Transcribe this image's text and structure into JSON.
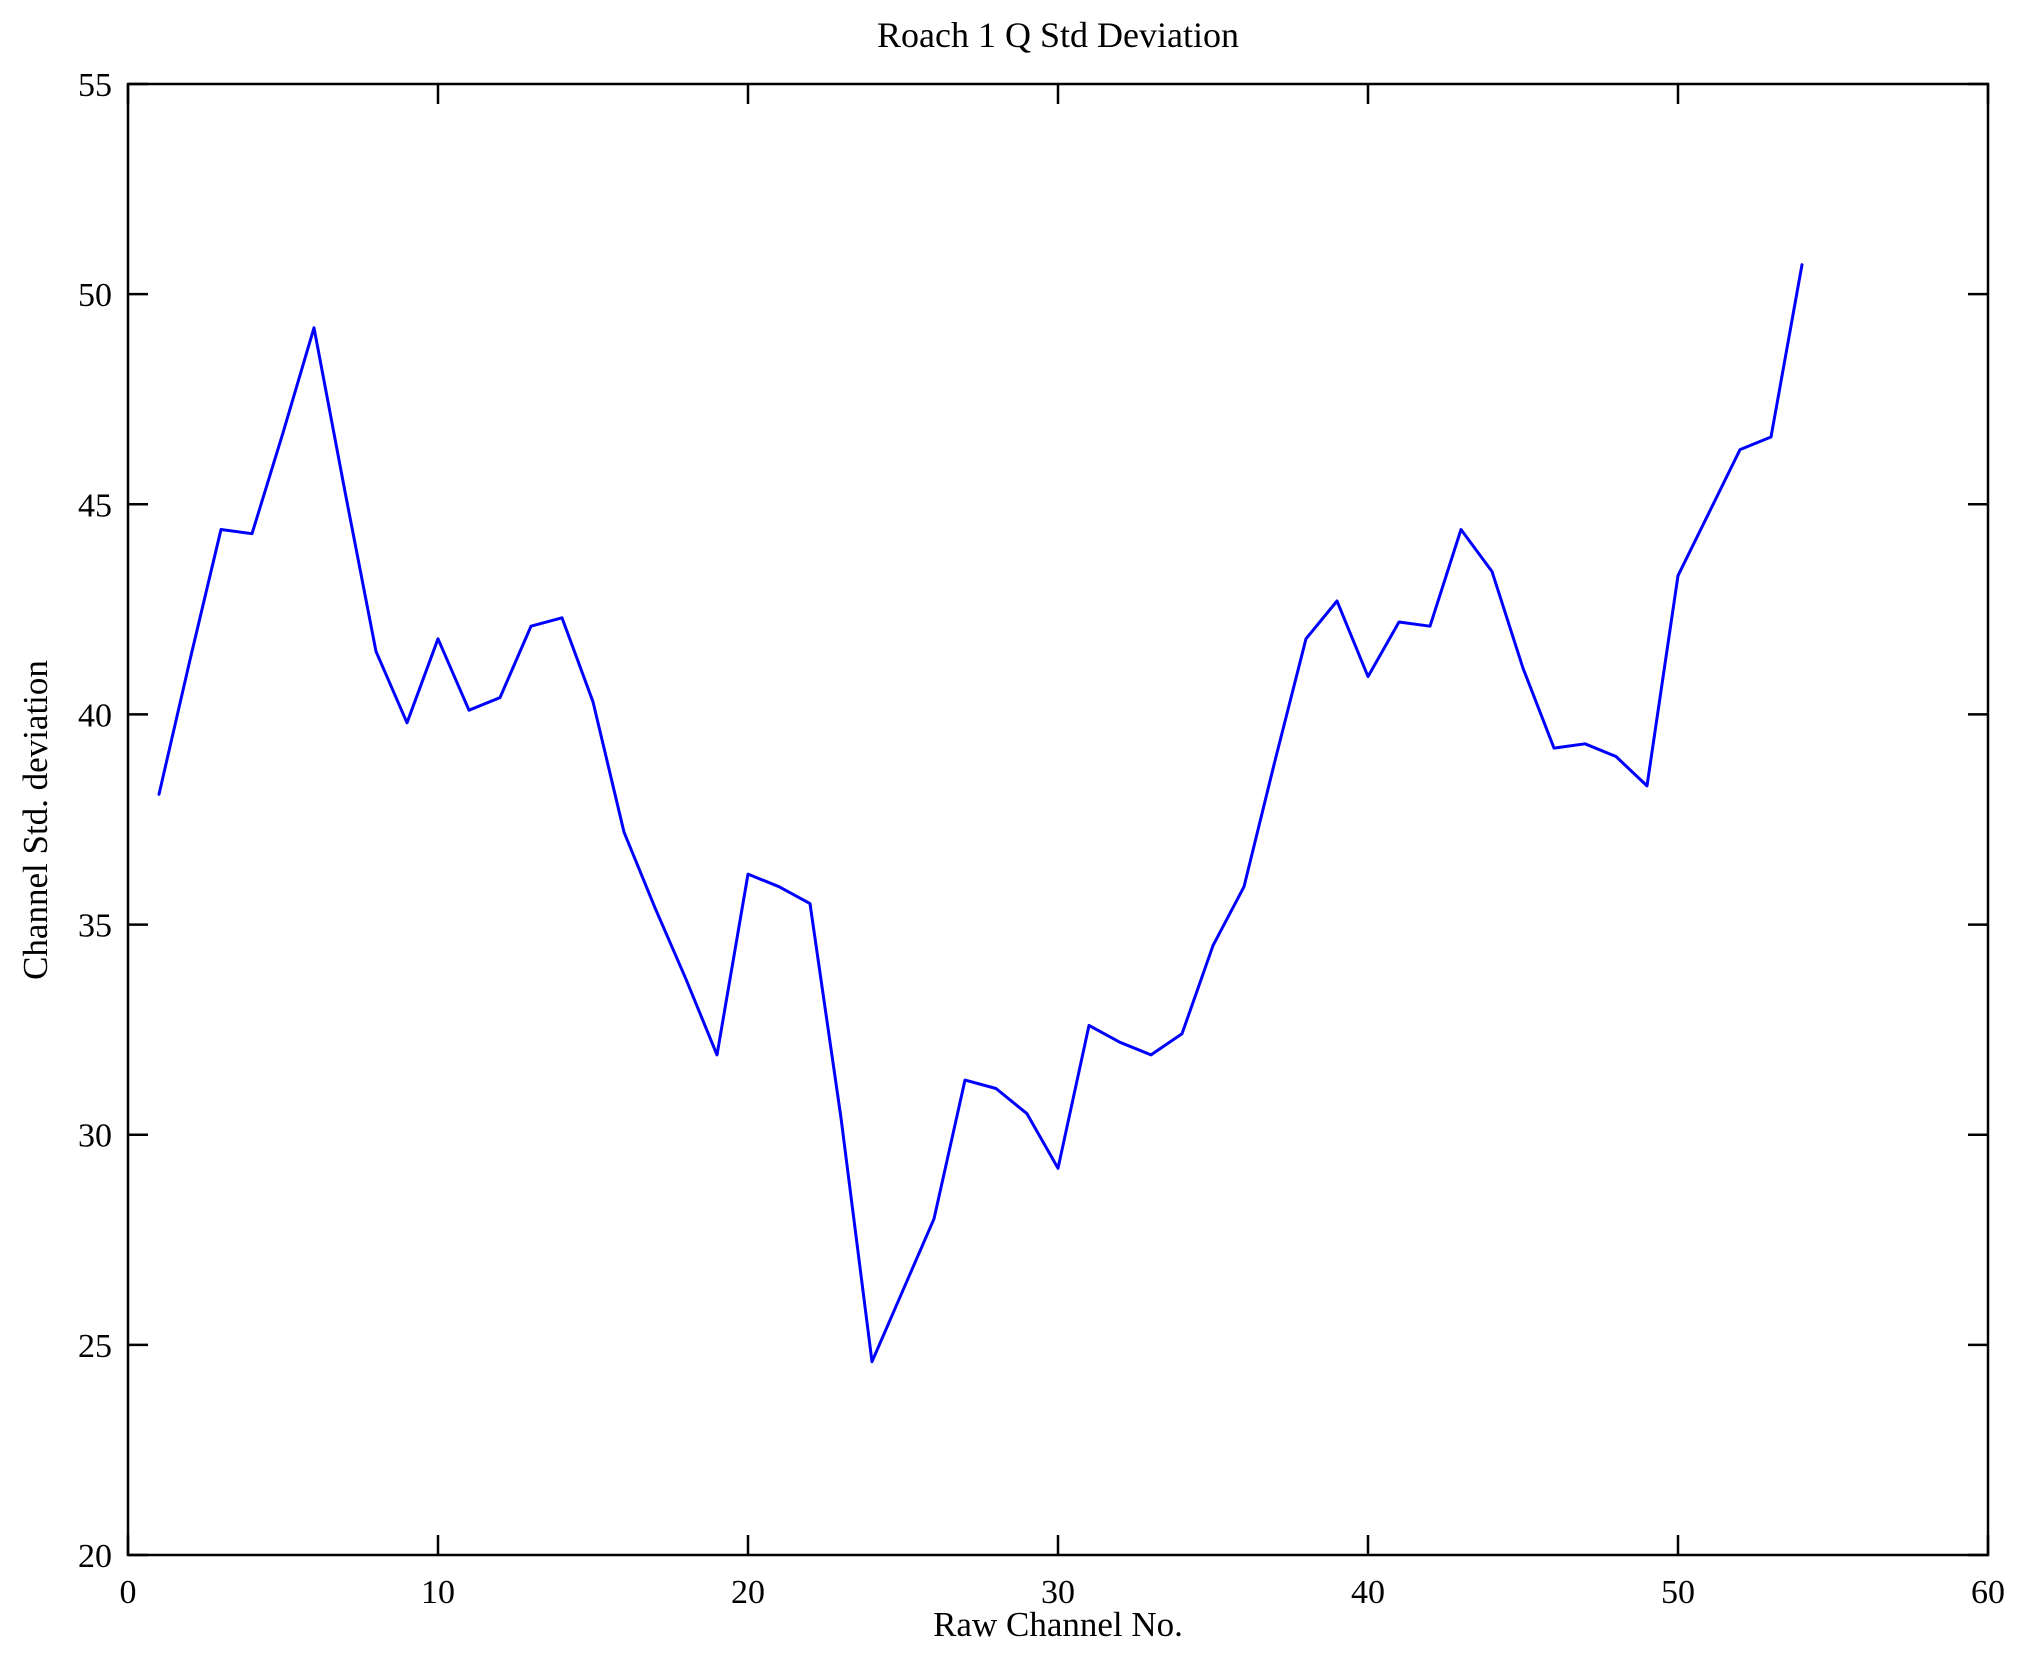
{
  "figure": {
    "title": "Roach 1 Q Std Deviation",
    "xlabel": "Raw Channel No.",
    "ylabel": "Channel Std. deviation"
  },
  "chart_data": {
    "type": "line",
    "title": "Roach 1 Q Std Deviation",
    "xlabel": "Raw Channel No.",
    "ylabel": "Channel Std. deviation",
    "legend": "none",
    "grid": false,
    "line_color": "#0000ff",
    "axis_color": "#000000",
    "xlim": [
      0,
      60
    ],
    "ylim": [
      20,
      55
    ],
    "x_ticks": [
      0,
      10,
      20,
      30,
      40,
      50,
      60
    ],
    "y_ticks": [
      20,
      25,
      30,
      35,
      40,
      45,
      50,
      55
    ],
    "x": [
      1,
      2,
      3,
      4,
      5,
      6,
      7,
      8,
      9,
      10,
      11,
      12,
      13,
      14,
      15,
      16,
      17,
      18,
      19,
      20,
      21,
      22,
      23,
      24,
      25,
      26,
      27,
      28,
      29,
      30,
      31,
      32,
      33,
      34,
      35,
      36,
      37,
      38,
      39,
      40,
      41,
      42,
      43,
      44,
      45,
      46,
      47,
      48,
      49,
      50,
      51,
      52,
      53,
      54
    ],
    "values": [
      38.1,
      41.3,
      44.4,
      44.3,
      46.7,
      49.2,
      45.3,
      41.5,
      39.8,
      41.8,
      40.1,
      40.4,
      42.1,
      42.3,
      40.3,
      37.2,
      35.4,
      33.7,
      31.9,
      36.2,
      35.9,
      35.5,
      30.4,
      24.6,
      26.3,
      28.0,
      31.3,
      31.1,
      30.5,
      29.2,
      32.6,
      32.2,
      31.9,
      32.4,
      34.5,
      35.9,
      38.9,
      41.8,
      42.7,
      40.9,
      42.2,
      42.1,
      44.4,
      43.4,
      41.1,
      39.2,
      39.3,
      39.0,
      38.3,
      43.3,
      44.8,
      46.3,
      46.6,
      50.7
    ]
  }
}
